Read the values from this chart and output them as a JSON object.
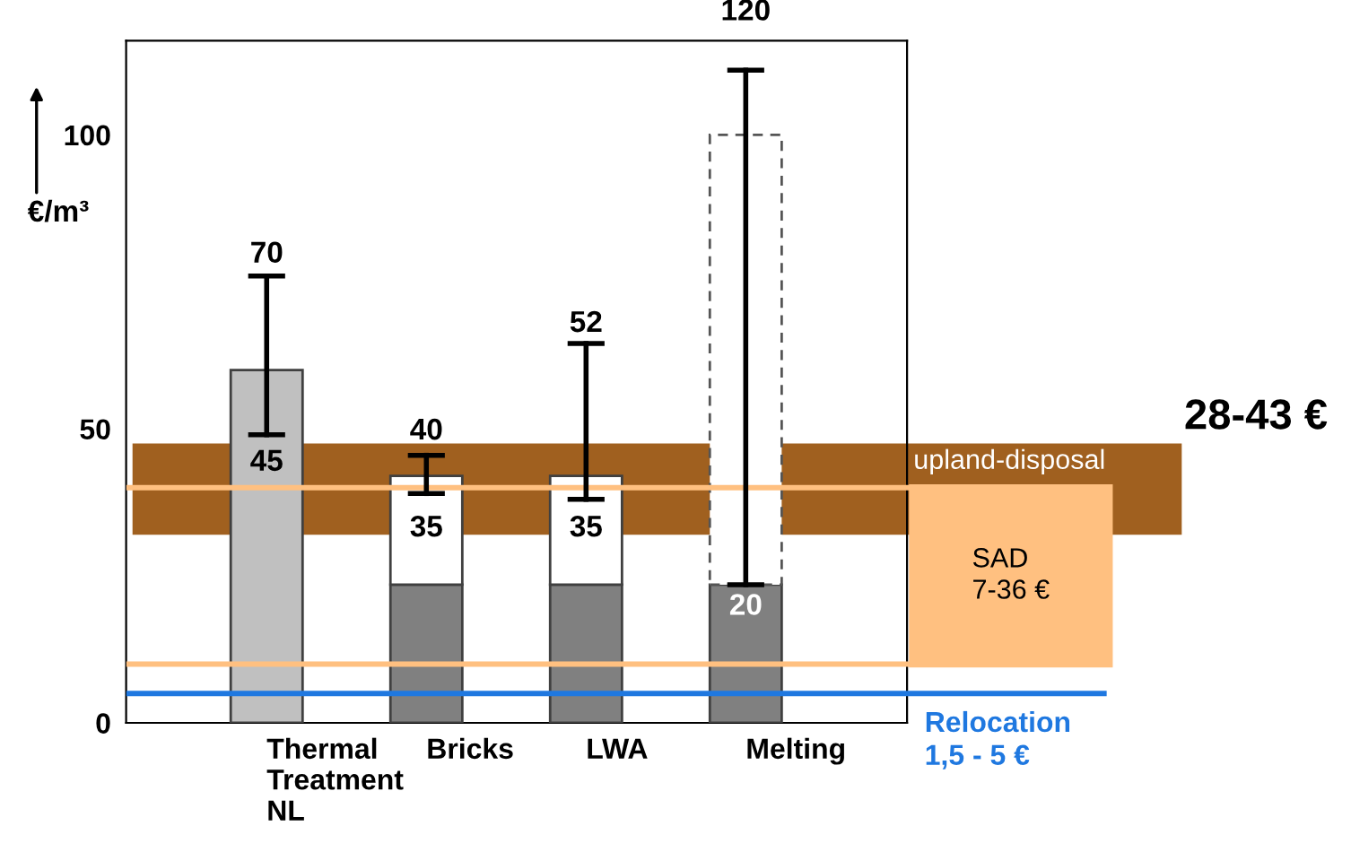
{
  "chart_data": {
    "type": "bar",
    "stacked": true,
    "categories": [
      "Thermal\nTreatment\nNL",
      "Bricks",
      "LWA",
      "Melting"
    ],
    "ylabel": "€/m³",
    "ylim": [
      0,
      116
    ],
    "yticks": [
      0,
      50,
      100
    ],
    "grid": false,
    "legend": false,
    "series": [
      {
        "colors": [
          "#c0c0c0",
          "#808080",
          "#808080",
          "#808080"
        ],
        "values": [
          60,
          23.5,
          23.5,
          23.5
        ],
        "errors": [
          [
            49,
            76
          ],
          null,
          null,
          null
        ]
      },
      {
        "color": "#ffffff",
        "values": [
          null,
          18.5,
          18.5,
          null
        ],
        "errors": [
          null,
          [
            39,
            45.5
          ],
          [
            38,
            64.5
          ],
          null
        ]
      },
      {
        "color": "#ffffff",
        "line_style": "dashed",
        "values": [
          null,
          null,
          null,
          76.5
        ],
        "errors": [
          null,
          null,
          null,
          [
            23.5,
            111
          ]
        ]
      }
    ],
    "bands": [
      {
        "axis": "y",
        "from": 32,
        "to": 47.5,
        "label": "upland-disposal",
        "color": "#a0601f"
      }
    ],
    "ref_lines": [
      {
        "axis": "y",
        "value": 5,
        "label": "Relocation\n1,5 - 5 €",
        "color": "#1f78e0"
      },
      {
        "axis": "y",
        "value": 40,
        "color": "#ffc080"
      },
      {
        "axis": "y",
        "value": 10,
        "color": "#ffc080"
      }
    ],
    "annotations": [
      "70",
      "45",
      "40",
      "35",
      "52",
      "35",
      "120",
      "20",
      "28-43 €",
      "SAD\n7-36 €"
    ]
  }
}
